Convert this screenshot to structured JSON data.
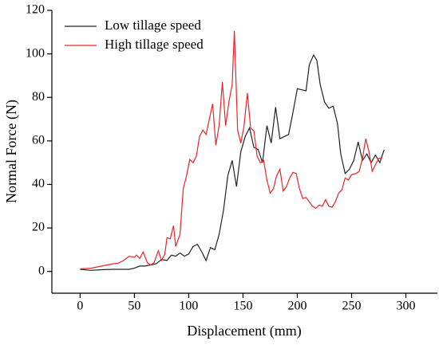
{
  "chart_data": {
    "type": "line",
    "xlabel": "Displacement (mm)",
    "ylabel": "Normal Force (N)",
    "xlim": [
      -26,
      329
    ],
    "ylim": [
      -10,
      120
    ],
    "xticks": [
      0,
      50,
      100,
      150,
      200,
      250,
      300
    ],
    "yticks": [
      0,
      20,
      40,
      60,
      80,
      100,
      120
    ],
    "legend": "upper left",
    "series": [
      {
        "name": "Low tillage speed",
        "color": "#222222",
        "x": [
          0,
          10,
          20,
          30,
          40,
          45,
          50,
          55,
          60,
          65,
          70,
          75,
          80,
          84,
          88,
          92,
          96,
          100,
          104,
          108,
          112,
          116,
          120,
          124,
          128,
          132,
          136,
          140,
          144,
          148,
          152,
          156,
          160,
          164,
          168,
          172,
          176,
          180,
          184,
          188,
          192,
          196,
          200,
          204,
          208,
          211,
          215,
          218,
          221,
          225,
          229,
          233,
          237,
          240,
          244,
          248,
          252,
          256,
          260,
          264,
          268,
          272,
          276,
          280
        ],
        "values": [
          1,
          0.5,
          0.8,
          1,
          1,
          1,
          1.5,
          2.5,
          2.5,
          3,
          3.5,
          5.5,
          5,
          7.5,
          7,
          8.5,
          7,
          8,
          11.5,
          12.5,
          9,
          5,
          11,
          10,
          17,
          28,
          44,
          51,
          39,
          55,
          62,
          66,
          57,
          56,
          50,
          67,
          59,
          75.5,
          61,
          62,
          63,
          73,
          84,
          83.5,
          83,
          95,
          99.5,
          97,
          86,
          78,
          75,
          76,
          68,
          54,
          45,
          47,
          51,
          59.5,
          51,
          54,
          50,
          53.5,
          50,
          56
        ]
      },
      {
        "name": "High tillage speed",
        "color": "#e8242a",
        "x": [
          0,
          10,
          20,
          30,
          35,
          40,
          45,
          50,
          52,
          55,
          58,
          62,
          65,
          68,
          72,
          75,
          78,
          80,
          83,
          86,
          88,
          92,
          95,
          98,
          101,
          104,
          107,
          110,
          113,
          116,
          119,
          122,
          125,
          128,
          131,
          134,
          137,
          140,
          142,
          145,
          148,
          151,
          154,
          157,
          160,
          163,
          166,
          169,
          172,
          175,
          178,
          181,
          184,
          187,
          190,
          193,
          196,
          199,
          202,
          205,
          208,
          211,
          214,
          217,
          220,
          223,
          226,
          229,
          232,
          235,
          238,
          241,
          244,
          247,
          250,
          254,
          257,
          260,
          263,
          266,
          269,
          272,
          275,
          278
        ],
        "values": [
          1.2,
          1.5,
          2.5,
          3.5,
          3.8,
          5,
          7,
          6.5,
          7.5,
          6,
          9,
          4,
          3,
          4,
          9.5,
          5,
          8,
          15.5,
          15,
          21,
          11.5,
          17,
          38,
          44,
          51.5,
          50,
          53,
          62,
          65,
          63,
          70,
          77,
          58,
          67,
          87,
          67,
          78,
          86,
          110.5,
          65,
          59,
          67,
          82,
          66,
          64.5,
          53,
          50,
          51,
          42,
          36,
          38,
          44,
          47,
          37,
          39,
          43,
          45.5,
          45,
          38,
          33.5,
          34,
          32,
          30,
          29,
          30.5,
          30,
          33,
          30,
          29.5,
          32,
          36,
          37.5,
          43,
          42,
          44.5,
          45,
          46,
          52,
          61,
          55,
          46,
          49,
          52,
          52
        ]
      }
    ]
  }
}
